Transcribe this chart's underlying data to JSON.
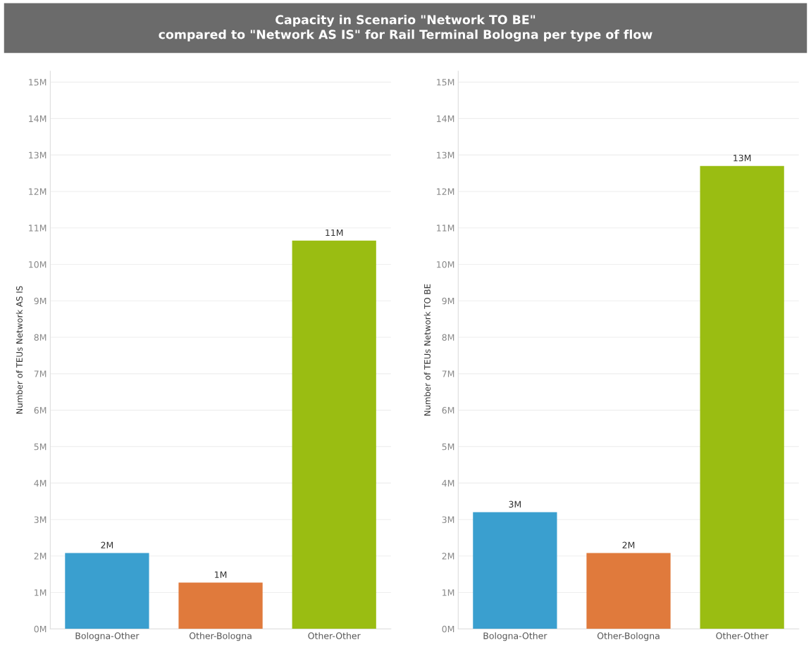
{
  "chart_data": [
    {
      "type": "bar",
      "title": "Capacity in Scenario \"Network TO BE\"\ncompared to \"Network AS IS\" for Rail Terminal Bologna per type of flow",
      "ylabel": "Number of TEUs Network AS IS",
      "categories": [
        "Bologna-Other",
        "Other-Bologna",
        "Other-Other"
      ],
      "values": [
        2.08,
        1.27,
        10.65
      ],
      "colors": [
        "#3a9fcf",
        "#e07a3c",
        "#9abd12"
      ],
      "value_labels": [
        "2M",
        "1M",
        "11M"
      ],
      "ylim": [
        0,
        15.3
      ],
      "yticks": [
        {
          "value": 0,
          "label": "0M"
        },
        {
          "value": 1,
          "label": "1M"
        },
        {
          "value": 2,
          "label": "2M"
        },
        {
          "value": 3,
          "label": "3M"
        },
        {
          "value": 4,
          "label": "4M"
        },
        {
          "value": 5,
          "label": "5M"
        },
        {
          "value": 6,
          "label": "6M"
        },
        {
          "value": 7,
          "label": "7M"
        },
        {
          "value": 8,
          "label": "8M"
        },
        {
          "value": 9,
          "label": "9M"
        },
        {
          "value": 10,
          "label": "10M"
        },
        {
          "value": 11,
          "label": "11M"
        },
        {
          "value": 12,
          "label": "12M"
        },
        {
          "value": 13,
          "label": "13M"
        },
        {
          "value": 14,
          "label": "14M"
        },
        {
          "value": 15,
          "label": "15M"
        }
      ],
      "grid": "y"
    },
    {
      "type": "bar",
      "ylabel": "Number of TEUs Network TO BE",
      "categories": [
        "Bologna-Other",
        "Other-Bologna",
        "Other-Other"
      ],
      "values": [
        3.2,
        2.08,
        12.7
      ],
      "colors": [
        "#3a9fcf",
        "#e07a3c",
        "#9abd12"
      ],
      "value_labels": [
        "3M",
        "2M",
        "13M"
      ],
      "ylim": [
        0,
        15.3
      ],
      "yticks": [
        {
          "value": 0,
          "label": "0M"
        },
        {
          "value": 1,
          "label": "1M"
        },
        {
          "value": 2,
          "label": "2M"
        },
        {
          "value": 3,
          "label": "3M"
        },
        {
          "value": 4,
          "label": "4M"
        },
        {
          "value": 5,
          "label": "5M"
        },
        {
          "value": 6,
          "label": "6M"
        },
        {
          "value": 7,
          "label": "7M"
        },
        {
          "value": 8,
          "label": "8M"
        },
        {
          "value": 9,
          "label": "9M"
        },
        {
          "value": 10,
          "label": "10M"
        },
        {
          "value": 11,
          "label": "11M"
        },
        {
          "value": 12,
          "label": "12M"
        },
        {
          "value": 13,
          "label": "13M"
        },
        {
          "value": 14,
          "label": "14M"
        },
        {
          "value": 15,
          "label": "15M"
        }
      ],
      "grid": "y"
    }
  ]
}
